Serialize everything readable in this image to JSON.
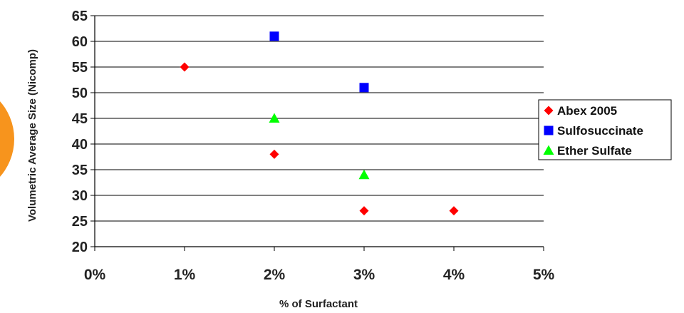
{
  "chart_data": {
    "type": "scatter",
    "title": "",
    "xlabel": "% of Surfactant",
    "ylabel": "Volumetric Average Size (Nicomp)",
    "xlim": [
      0,
      5
    ],
    "ylim": [
      20,
      65
    ],
    "x_ticks": [
      0,
      1,
      2,
      3,
      4,
      5
    ],
    "x_tick_labels": [
      "0%",
      "1%",
      "2%",
      "3%",
      "4%",
      "5%"
    ],
    "y_ticks": [
      20,
      25,
      30,
      35,
      40,
      45,
      50,
      55,
      60,
      65
    ],
    "y_tick_labels": [
      "20",
      "25",
      "30",
      "35",
      "40",
      "45",
      "50",
      "55",
      "60",
      "65"
    ],
    "grid": "horizontal",
    "legend_position": "right",
    "series": [
      {
        "name": "Abex 2005",
        "marker": "diamond",
        "color": "#ff0000",
        "points": [
          {
            "x": 1,
            "y": 55
          },
          {
            "x": 2,
            "y": 38
          },
          {
            "x": 3,
            "y": 27
          },
          {
            "x": 4,
            "y": 27
          }
        ]
      },
      {
        "name": "Sulfosuccinate",
        "marker": "square",
        "color": "#0000ff",
        "points": [
          {
            "x": 2,
            "y": 61
          },
          {
            "x": 3,
            "y": 51
          }
        ]
      },
      {
        "name": "Ether Sulfate",
        "marker": "triangle",
        "color": "#00ff00",
        "points": [
          {
            "x": 2,
            "y": 45
          },
          {
            "x": 3,
            "y": 34
          }
        ]
      }
    ]
  },
  "decoration": {
    "accent_circle_color": "#f7941d"
  }
}
